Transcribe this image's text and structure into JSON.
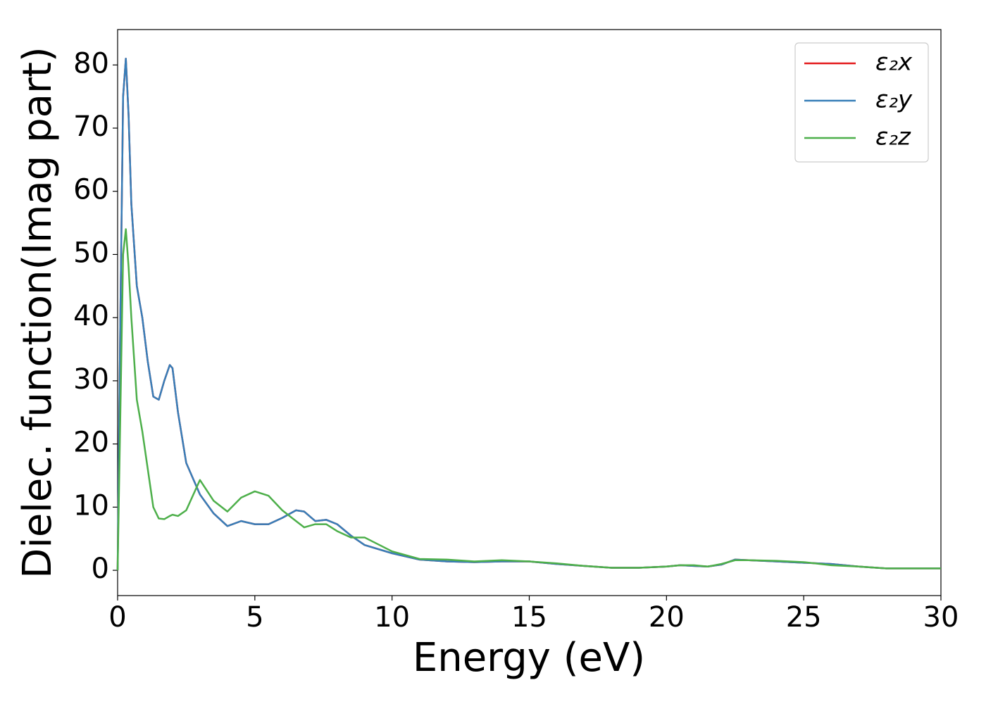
{
  "chart_data": {
    "type": "line",
    "xlabel": "Energy (eV)",
    "ylabel": "Dielec. function(Imag part)",
    "x": [
      0,
      0.1,
      0.2,
      0.3,
      0.4,
      0.5,
      0.7,
      0.9,
      1.1,
      1.3,
      1.5,
      1.7,
      1.9,
      2.0,
      2.2,
      2.5,
      3.0,
      3.5,
      4.0,
      4.5,
      5.0,
      5.5,
      6.0,
      6.5,
      6.8,
      7.2,
      7.6,
      8.0,
      8.5,
      9.0,
      10,
      11,
      12,
      13,
      14,
      15,
      16,
      17,
      18,
      19,
      20,
      20.5,
      21,
      21.5,
      22,
      22.5,
      23,
      24,
      25,
      26,
      27,
      28,
      29,
      30
    ],
    "series": [
      {
        "name": "ε₂x",
        "color": "#e41a1c",
        "values": [
          0,
          40,
          75,
          81,
          72,
          58,
          45,
          40,
          33,
          27.5,
          27,
          30,
          32.5,
          32,
          25,
          17,
          12,
          9,
          7,
          7.8,
          7.3,
          7.3,
          8.3,
          9.5,
          9.3,
          7.8,
          8,
          7.3,
          5.5,
          4,
          2.7,
          1.7,
          1.4,
          1.3,
          1.4,
          1.4,
          1.0,
          0.7,
          0.4,
          0.4,
          0.6,
          0.8,
          0.7,
          0.6,
          0.9,
          1.7,
          1.6,
          1.4,
          1.2,
          1.0,
          0.6,
          0.3,
          0.3,
          0.3
        ]
      },
      {
        "name": "ε₂y",
        "color": "#377eb8",
        "values": [
          0,
          40,
          75,
          81,
          72,
          58,
          45,
          40,
          33,
          27.5,
          27,
          30,
          32.5,
          32,
          25,
          17,
          12,
          9,
          7,
          7.8,
          7.3,
          7.3,
          8.3,
          9.5,
          9.3,
          7.8,
          8,
          7.3,
          5.5,
          4,
          2.7,
          1.7,
          1.4,
          1.3,
          1.4,
          1.4,
          1.0,
          0.7,
          0.4,
          0.4,
          0.6,
          0.8,
          0.7,
          0.6,
          0.9,
          1.7,
          1.6,
          1.4,
          1.2,
          1.0,
          0.6,
          0.3,
          0.3,
          0.3
        ]
      },
      {
        "name": "ε₂z",
        "color": "#4daf4a",
        "values": [
          0,
          25,
          50,
          54,
          48,
          40,
          27,
          22,
          16,
          10,
          8.2,
          8.1,
          8.6,
          8.8,
          8.6,
          9.5,
          14.3,
          11,
          9.3,
          11.5,
          12.5,
          11.8,
          9.5,
          7.8,
          6.8,
          7.3,
          7.3,
          6.2,
          5.2,
          5.2,
          3.0,
          1.8,
          1.7,
          1.4,
          1.6,
          1.4,
          1.1,
          0.7,
          0.4,
          0.4,
          0.6,
          0.8,
          0.8,
          0.6,
          1.0,
          1.6,
          1.6,
          1.5,
          1.3,
          0.8,
          0.6,
          0.3,
          0.3,
          0.3
        ]
      }
    ],
    "xlim": [
      0,
      30
    ],
    "xticks": [
      0,
      5,
      10,
      15,
      20,
      25,
      30
    ],
    "ylim": [
      -4,
      85.6
    ],
    "yticks": [
      0,
      10,
      20,
      30,
      40,
      50,
      60,
      70,
      80
    ],
    "grid": false,
    "legend": "upper right"
  }
}
